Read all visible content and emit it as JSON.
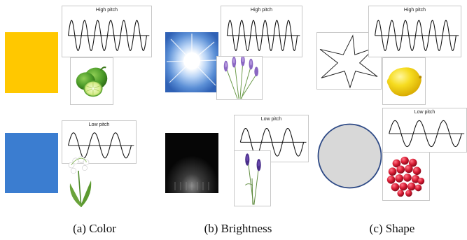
{
  "colors": {
    "yellow": "#FFC800",
    "blue": "#3B7DD0",
    "circle_fill": "#D8D8D8",
    "circle_stroke": "#2E4A86",
    "wave_stroke": "#111111"
  },
  "panels": [
    {
      "id": "color",
      "caption": "(a) Color",
      "high": {
        "label": "High pitch",
        "cycles": 6
      },
      "low": {
        "label": "Low pitch",
        "cycles": 3
      },
      "high_stimulus": {
        "kind": "swatch",
        "color_name": "yellow",
        "icon": "yellow-square-icon"
      },
      "low_stimulus": {
        "kind": "swatch",
        "color_name": "blue",
        "icon": "blue-square-icon"
      },
      "high_object": {
        "icon": "lime-icon"
      },
      "low_object": {
        "icon": "lily-of-the-valley-icon"
      }
    },
    {
      "id": "brightness",
      "caption": "(b) Brightness",
      "high": {
        "label": "High pitch",
        "cycles": 6
      },
      "low": {
        "label": "Low pitch",
        "cycles": 3
      },
      "high_stimulus": {
        "kind": "light",
        "icon": "bright-light-icon"
      },
      "low_stimulus": {
        "kind": "dark",
        "icon": "dark-room-icon"
      },
      "high_object": {
        "icon": "lavender-bright-icon"
      },
      "low_object": {
        "icon": "lavender-dark-icon"
      }
    },
    {
      "id": "shape",
      "caption": "(c) Shape",
      "high": {
        "label": "High pitch",
        "cycles": 6
      },
      "low": {
        "label": "Low pitch",
        "cycles": 3
      },
      "high_stimulus": {
        "kind": "star",
        "icon": "spiky-star-icon"
      },
      "low_stimulus": {
        "kind": "circle",
        "icon": "circle-icon"
      },
      "high_object": {
        "icon": "lemon-icon"
      },
      "low_object": {
        "icon": "raspberry-icon"
      }
    }
  ]
}
